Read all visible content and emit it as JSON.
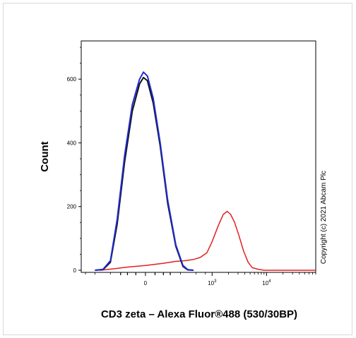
{
  "chart_data": {
    "type": "line",
    "title": "",
    "xlabel": "CD3 zeta – Alexa Fluor®488 (530/30BP)",
    "ylabel": "Count",
    "y_ticks": [
      {
        "value": 0,
        "label": "0"
      },
      {
        "value": 200,
        "label": "200"
      },
      {
        "value": 400,
        "label": "400"
      },
      {
        "value": 600,
        "label": "600"
      }
    ],
    "x_ticks": [
      {
        "position": 0,
        "base": "0",
        "exp": ""
      },
      {
        "position": 1000,
        "base": "10",
        "exp": "3"
      },
      {
        "position": 10000,
        "base": "10",
        "exp": "4"
      }
    ],
    "x_scale": "biexponential",
    "xlim": [
      -900,
      80000
    ],
    "ylim": [
      0,
      720
    ],
    "grid": false,
    "legend": "none",
    "series": [
      {
        "color": "#1f2bd0",
        "x": [
          -500,
          -350,
          -250,
          -180,
          -120,
          -70,
          -30,
          -10,
          10,
          40,
          80,
          130,
          200,
          280,
          350,
          450
        ],
        "y": [
          0,
          3,
          30,
          160,
          360,
          520,
          600,
          622,
          610,
          540,
          400,
          220,
          80,
          15,
          2,
          0
        ]
      },
      {
        "color": "#111111",
        "x": [
          -500,
          -350,
          -250,
          -180,
          -120,
          -70,
          -30,
          -10,
          10,
          40,
          80,
          130,
          200,
          280,
          350,
          450
        ],
        "y": [
          0,
          2,
          25,
          145,
          340,
          500,
          585,
          605,
          595,
          525,
          390,
          210,
          75,
          12,
          1,
          0
        ]
      },
      {
        "color": "#e0201e",
        "x": [
          -400,
          -200,
          -100,
          0,
          100,
          200,
          300,
          450,
          600,
          800,
          1000,
          1300,
          1600,
          1900,
          2200,
          2600,
          3100,
          3800,
          4600,
          5500,
          7000,
          9000,
          15000,
          80000
        ],
        "y": [
          0,
          5,
          10,
          15,
          22,
          28,
          30,
          34,
          40,
          55,
          90,
          140,
          175,
          185,
          175,
          150,
          110,
          60,
          25,
          8,
          3,
          0,
          0,
          0
        ]
      }
    ]
  },
  "copyright": "Copyright (c) 2021 Abcam Plc",
  "colors": {
    "blue_series": "#1f2bd0",
    "black_series": "#111111",
    "red_series": "#e0201e"
  }
}
